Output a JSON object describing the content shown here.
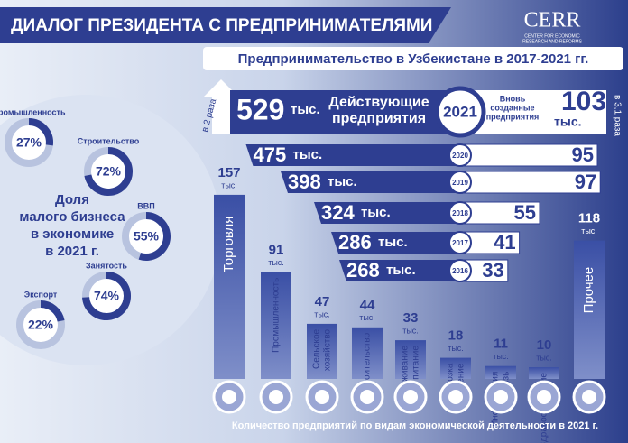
{
  "header": {
    "title": "ДИАЛОГ ПРЕЗИДЕНТА С ПРЕДПРИНИМАТЕЛЯМИ",
    "subtitle": "Предпринимательство в Узбекистане в 2017-2021 гг.",
    "logo": "CERR",
    "logo_sub": [
      "CENTER FOR ECONOMIC",
      "RESEARCH AND REFORMS"
    ]
  },
  "unit": "тыс.",
  "dynamics": {
    "active_label": [
      "Действующие",
      "предприятия"
    ],
    "new_label": [
      "Вновь",
      "созданные",
      "предприятия"
    ],
    "active_growth": "в 2 раза",
    "new_growth": "в 3,1 раза",
    "rows": [
      {
        "year": "2021",
        "active": 529,
        "new": 103
      },
      {
        "year": "2020",
        "active": 475,
        "new": 95
      },
      {
        "year": "2019",
        "active": 398,
        "new": 97
      },
      {
        "year": "2018",
        "active": 324,
        "new": 55
      },
      {
        "year": "2017",
        "active": 286,
        "new": 41
      },
      {
        "year": "2016",
        "active": 268,
        "new": 33
      }
    ]
  },
  "share": {
    "title": [
      "Доля",
      "малого бизнеса",
      "в экономике",
      "в 2021 г."
    ],
    "items": [
      {
        "name": "Промышленность",
        "value": 27,
        "label": "27%"
      },
      {
        "name": "Строительство",
        "value": 72,
        "label": "72%"
      },
      {
        "name": "ВВП",
        "value": 55,
        "label": "55%"
      },
      {
        "name": "Занятость",
        "value": 74,
        "label": "74%"
      },
      {
        "name": "Экспорт",
        "value": 22,
        "label": "22%"
      }
    ]
  },
  "sectors": {
    "caption": "Количество предприятий по видам экономической деятельности в 2021 г.",
    "items": [
      {
        "name": [
          "Торговля"
        ],
        "value": 157
      },
      {
        "name": [
          "Промышленность"
        ],
        "value": 91
      },
      {
        "name": [
          "Сельское",
          "хозяйство"
        ],
        "value": 47
      },
      {
        "name": [
          "Строительство"
        ],
        "value": 44
      },
      {
        "name": [
          "Проживание",
          "и питание"
        ],
        "value": 33
      },
      {
        "name": [
          "Перевозка",
          "и хранение"
        ],
        "value": 18
      },
      {
        "name": [
          "Информация",
          "и связь"
        ],
        "value": 11
      },
      {
        "name": [
          "Здравоохранение"
        ],
        "value": 10
      },
      {
        "name": [
          "Прочее"
        ],
        "value": 118
      }
    ]
  }
}
